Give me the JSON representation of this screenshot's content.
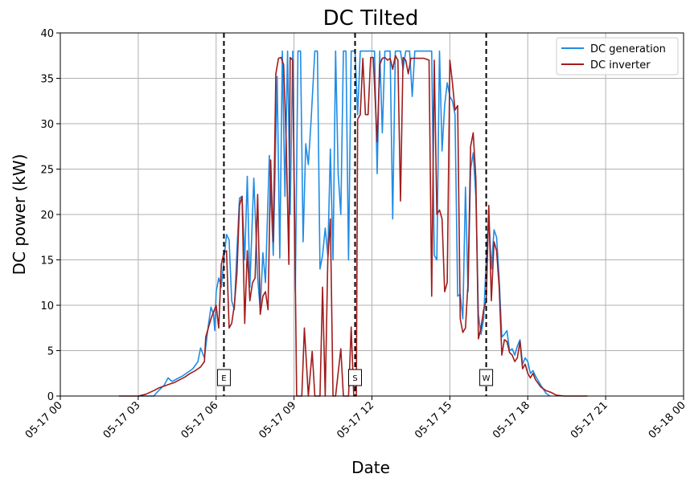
{
  "chart_data": {
    "type": "line",
    "title": "DC Tilted",
    "xlabel": "Date",
    "ylabel": "DC power (kW)",
    "xlim_hours": [
      0,
      24
    ],
    "ylim": [
      0,
      40
    ],
    "grid": true,
    "legend_position": "top-right",
    "x_tick_labels": [
      "05-17 00",
      "05-17 03",
      "05-17 06",
      "05-17 09",
      "05-17 12",
      "05-17 15",
      "05-17 18",
      "05-17 21",
      "05-18 00"
    ],
    "y_tick_labels": [
      "0",
      "5",
      "10",
      "15",
      "20",
      "25",
      "30",
      "35",
      "40"
    ],
    "vertical_markers": [
      {
        "label": "E",
        "hour": 6.3
      },
      {
        "label": "S",
        "hour": 11.35
      },
      {
        "label": "W",
        "hour": 16.4
      }
    ],
    "series": [
      {
        "name": "DC generation",
        "color": "#1f8ce6",
        "points": [
          [
            3.0,
            0
          ],
          [
            3.6,
            0
          ],
          [
            3.75,
            0.5
          ],
          [
            4.0,
            1.2
          ],
          [
            4.15,
            2.0
          ],
          [
            4.3,
            1.6
          ],
          [
            4.5,
            1.9
          ],
          [
            4.7,
            2.2
          ],
          [
            4.9,
            2.6
          ],
          [
            5.1,
            3.0
          ],
          [
            5.3,
            3.8
          ],
          [
            5.4,
            5.3
          ],
          [
            5.55,
            4.2
          ],
          [
            5.7,
            7.8
          ],
          [
            5.8,
            9.8
          ],
          [
            5.9,
            9.0
          ],
          [
            5.95,
            7.2
          ],
          [
            6.0,
            11.5
          ],
          [
            6.1,
            13.0
          ],
          [
            6.2,
            12.0
          ],
          [
            6.3,
            15.0
          ],
          [
            6.4,
            17.8
          ],
          [
            6.5,
            17.2
          ],
          [
            6.6,
            10.5
          ],
          [
            6.7,
            9.5
          ],
          [
            6.8,
            16.0
          ],
          [
            6.9,
            21.8
          ],
          [
            7.0,
            22.0
          ],
          [
            7.1,
            15.0
          ],
          [
            7.2,
            24.2
          ],
          [
            7.3,
            12.0
          ],
          [
            7.45,
            24.0
          ],
          [
            7.6,
            13.0
          ],
          [
            7.7,
            9.5
          ],
          [
            7.8,
            15.8
          ],
          [
            7.9,
            12.5
          ],
          [
            8.05,
            26.5
          ],
          [
            8.2,
            15.5
          ],
          [
            8.35,
            35.2
          ],
          [
            8.45,
            15.2
          ],
          [
            8.55,
            38.0
          ],
          [
            8.65,
            22.0
          ],
          [
            8.75,
            38.0
          ],
          [
            8.85,
            20.0
          ],
          [
            8.95,
            38.0
          ],
          [
            9.05,
            11.5
          ],
          [
            9.15,
            38.0
          ],
          [
            9.25,
            38.0
          ],
          [
            9.35,
            17.0
          ],
          [
            9.45,
            27.8
          ],
          [
            9.55,
            25.5
          ],
          [
            9.65,
            30.0
          ],
          [
            9.8,
            38.0
          ],
          [
            9.9,
            38.0
          ],
          [
            10.0,
            14.0
          ],
          [
            10.1,
            15.5
          ],
          [
            10.2,
            18.5
          ],
          [
            10.3,
            15.5
          ],
          [
            10.4,
            27.2
          ],
          [
            10.5,
            15.0
          ],
          [
            10.6,
            38.0
          ],
          [
            10.7,
            24.5
          ],
          [
            10.8,
            20.0
          ],
          [
            10.9,
            38.0
          ],
          [
            11.0,
            38.0
          ],
          [
            11.1,
            15.0
          ],
          [
            11.2,
            38.0
          ],
          [
            11.35,
            38.0
          ],
          [
            11.45,
            31.0
          ],
          [
            11.55,
            38.0
          ],
          [
            11.65,
            38.0
          ],
          [
            11.75,
            38.0
          ],
          [
            11.85,
            38.0
          ],
          [
            12.0,
            38.0
          ],
          [
            12.1,
            38.0
          ],
          [
            12.2,
            24.5
          ],
          [
            12.3,
            38.0
          ],
          [
            12.4,
            29.0
          ],
          [
            12.5,
            38.0
          ],
          [
            12.6,
            38.0
          ],
          [
            12.7,
            38.0
          ],
          [
            12.8,
            19.5
          ],
          [
            12.9,
            38.0
          ],
          [
            13.0,
            38.0
          ],
          [
            13.1,
            38.0
          ],
          [
            13.2,
            36.0
          ],
          [
            13.3,
            38.0
          ],
          [
            13.45,
            38.0
          ],
          [
            13.55,
            33.0
          ],
          [
            13.65,
            38.0
          ],
          [
            13.8,
            38.0
          ],
          [
            14.0,
            38.0
          ],
          [
            14.2,
            38.0
          ],
          [
            14.3,
            38.0
          ],
          [
            14.4,
            15.5
          ],
          [
            14.5,
            15.0
          ],
          [
            14.6,
            38.0
          ],
          [
            14.7,
            27.0
          ],
          [
            14.8,
            32.0
          ],
          [
            14.9,
            34.5
          ],
          [
            15.0,
            33.0
          ],
          [
            15.1,
            32.5
          ],
          [
            15.2,
            31.0
          ],
          [
            15.3,
            11.0
          ],
          [
            15.4,
            11.2
          ],
          [
            15.5,
            8.5
          ],
          [
            15.6,
            23.0
          ],
          [
            15.7,
            11.5
          ],
          [
            15.8,
            25.0
          ],
          [
            15.9,
            26.8
          ],
          [
            16.0,
            22.0
          ],
          [
            16.1,
            9.0
          ],
          [
            16.2,
            6.8
          ],
          [
            16.3,
            8.5
          ],
          [
            16.4,
            15.0
          ],
          [
            16.5,
            20.0
          ],
          [
            16.6,
            14.0
          ],
          [
            16.7,
            18.3
          ],
          [
            16.8,
            17.5
          ],
          [
            16.9,
            13.0
          ],
          [
            17.0,
            6.5
          ],
          [
            17.1,
            6.8
          ],
          [
            17.2,
            7.2
          ],
          [
            17.3,
            5.0
          ],
          [
            17.4,
            5.2
          ],
          [
            17.5,
            4.5
          ],
          [
            17.6,
            5.5
          ],
          [
            17.7,
            6.2
          ],
          [
            17.8,
            3.5
          ],
          [
            17.9,
            4.2
          ],
          [
            18.0,
            3.8
          ],
          [
            18.1,
            2.5
          ],
          [
            18.2,
            2.8
          ],
          [
            18.3,
            2.2
          ],
          [
            18.5,
            1.2
          ],
          [
            18.7,
            0.3
          ],
          [
            18.85,
            0
          ]
        ]
      },
      {
        "name": "DC inverter",
        "color": "#a01c1c",
        "points": [
          [
            2.25,
            0
          ],
          [
            3.0,
            0
          ],
          [
            3.3,
            0.2
          ],
          [
            3.6,
            0.6
          ],
          [
            3.8,
            0.9
          ],
          [
            4.0,
            1.1
          ],
          [
            4.2,
            1.3
          ],
          [
            4.4,
            1.5
          ],
          [
            4.6,
            1.8
          ],
          [
            4.8,
            2.1
          ],
          [
            5.0,
            2.5
          ],
          [
            5.2,
            2.8
          ],
          [
            5.4,
            3.2
          ],
          [
            5.55,
            3.8
          ],
          [
            5.6,
            6.5
          ],
          [
            5.8,
            8.5
          ],
          [
            6.0,
            10.0
          ],
          [
            6.1,
            7.5
          ],
          [
            6.2,
            14.5
          ],
          [
            6.3,
            15.8
          ],
          [
            6.4,
            16.0
          ],
          [
            6.5,
            7.5
          ],
          [
            6.6,
            8.0
          ],
          [
            6.7,
            10.0
          ],
          [
            6.8,
            13.5
          ],
          [
            6.9,
            21.0
          ],
          [
            7.0,
            22.0
          ],
          [
            7.1,
            8.0
          ],
          [
            7.2,
            16.0
          ],
          [
            7.3,
            10.5
          ],
          [
            7.4,
            12.5
          ],
          [
            7.5,
            13.0
          ],
          [
            7.6,
            22.2
          ],
          [
            7.7,
            9.0
          ],
          [
            7.8,
            11.0
          ],
          [
            7.9,
            11.5
          ],
          [
            8.0,
            9.5
          ],
          [
            8.1,
            26.0
          ],
          [
            8.2,
            17.0
          ],
          [
            8.3,
            35.5
          ],
          [
            8.4,
            37.2
          ],
          [
            8.5,
            37.3
          ],
          [
            8.6,
            36.5
          ],
          [
            8.7,
            28.0
          ],
          [
            8.8,
            14.5
          ],
          [
            8.85,
            37.3
          ],
          [
            8.95,
            37.0
          ],
          [
            9.1,
            0
          ],
          [
            9.3,
            0
          ],
          [
            9.4,
            7.5
          ],
          [
            9.55,
            0
          ],
          [
            9.7,
            4.9
          ],
          [
            9.8,
            0
          ],
          [
            10.0,
            0
          ],
          [
            10.1,
            12.0
          ],
          [
            10.2,
            0
          ],
          [
            10.3,
            15.0
          ],
          [
            10.4,
            19.5
          ],
          [
            10.5,
            0
          ],
          [
            10.6,
            0
          ],
          [
            10.8,
            5.2
          ],
          [
            10.9,
            0
          ],
          [
            11.1,
            0
          ],
          [
            11.2,
            7.6
          ],
          [
            11.3,
            0
          ],
          [
            11.4,
            0
          ],
          [
            11.45,
            30.5
          ],
          [
            11.55,
            31.0
          ],
          [
            11.65,
            37.2
          ],
          [
            11.75,
            31.0
          ],
          [
            11.85,
            31.0
          ],
          [
            11.95,
            37.3
          ],
          [
            12.05,
            37.3
          ],
          [
            12.2,
            28.0
          ],
          [
            12.3,
            36.5
          ],
          [
            12.4,
            37.2
          ],
          [
            12.5,
            37.3
          ],
          [
            12.6,
            37.0
          ],
          [
            12.7,
            37.2
          ],
          [
            12.8,
            36.0
          ],
          [
            12.9,
            37.5
          ],
          [
            13.0,
            37.0
          ],
          [
            13.1,
            21.5
          ],
          [
            13.2,
            37.3
          ],
          [
            13.3,
            37.0
          ],
          [
            13.4,
            35.5
          ],
          [
            13.5,
            37.2
          ],
          [
            13.6,
            37.2
          ],
          [
            13.8,
            37.2
          ],
          [
            14.0,
            37.2
          ],
          [
            14.2,
            37.0
          ],
          [
            14.3,
            11.0
          ],
          [
            14.4,
            37.0
          ],
          [
            14.5,
            20.0
          ],
          [
            14.6,
            20.5
          ],
          [
            14.7,
            19.5
          ],
          [
            14.8,
            11.5
          ],
          [
            14.9,
            12.5
          ],
          [
            15.0,
            37.0
          ],
          [
            15.1,
            34.5
          ],
          [
            15.2,
            31.5
          ],
          [
            15.3,
            32.0
          ],
          [
            15.4,
            8.5
          ],
          [
            15.5,
            7.0
          ],
          [
            15.6,
            7.5
          ],
          [
            15.7,
            12.5
          ],
          [
            15.8,
            27.5
          ],
          [
            15.9,
            29.0
          ],
          [
            16.0,
            24.0
          ],
          [
            16.1,
            6.3
          ],
          [
            16.2,
            7.5
          ],
          [
            16.3,
            9.5
          ],
          [
            16.4,
            10.5
          ],
          [
            16.5,
            21.0
          ],
          [
            16.6,
            10.5
          ],
          [
            16.7,
            17.0
          ],
          [
            16.8,
            16.0
          ],
          [
            16.9,
            12.0
          ],
          [
            17.0,
            4.5
          ],
          [
            17.1,
            6.2
          ],
          [
            17.2,
            6.0
          ],
          [
            17.3,
            4.8
          ],
          [
            17.4,
            4.5
          ],
          [
            17.5,
            3.8
          ],
          [
            17.6,
            4.2
          ],
          [
            17.7,
            6.0
          ],
          [
            17.8,
            3.0
          ],
          [
            17.9,
            3.5
          ],
          [
            18.0,
            2.5
          ],
          [
            18.1,
            2.0
          ],
          [
            18.2,
            2.5
          ],
          [
            18.3,
            1.8
          ],
          [
            18.5,
            1.0
          ],
          [
            18.7,
            0.6
          ],
          [
            18.9,
            0.4
          ],
          [
            19.1,
            0.1
          ],
          [
            19.4,
            0
          ],
          [
            20.3,
            0
          ]
        ]
      }
    ]
  }
}
